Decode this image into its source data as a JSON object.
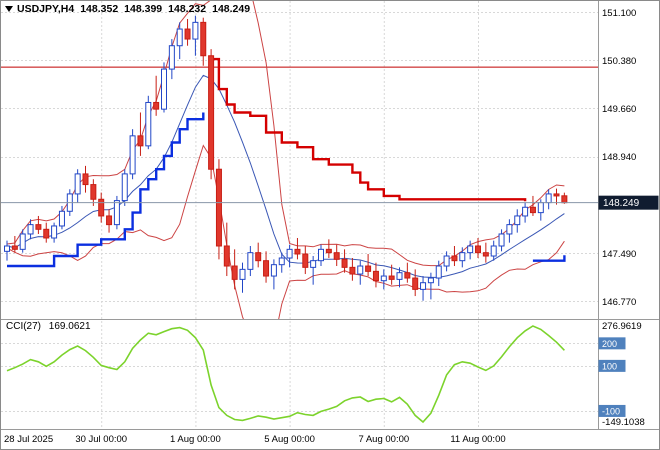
{
  "header": {
    "symbol_label": "USDJPY,H4",
    "open": "148.352",
    "high": "148.399",
    "low": "148.232",
    "close": "148.249"
  },
  "price_axis": {
    "labels": [
      {
        "text": "151.100",
        "price": 151.1
      },
      {
        "text": "150.380",
        "price": 150.38
      },
      {
        "text": "149.660",
        "price": 149.66
      },
      {
        "text": "148.940",
        "price": 148.94
      },
      {
        "text": "147.490",
        "price": 147.49
      },
      {
        "text": "146.770",
        "price": 146.77
      }
    ],
    "tag": {
      "text": "148.249",
      "price": 148.249
    }
  },
  "time_axis": {
    "labels": [
      {
        "text": "28 Jul 2025",
        "index": 0
      },
      {
        "text": "30 Jul 00:00",
        "index": 12
      },
      {
        "text": "1 Aug 00:00",
        "index": 24
      },
      {
        "text": "5 Aug 00:00",
        "index": 36
      },
      {
        "text": "7 Aug 00:00",
        "index": 48
      },
      {
        "text": "11 Aug 00:00",
        "index": 60
      }
    ]
  },
  "indicator": {
    "name": "CCI(27)",
    "value": "169.0621",
    "max_label": "276.9619",
    "min_label": "-149.1038",
    "levels": [
      {
        "text": "200",
        "value": 200
      },
      {
        "text": "100",
        "value": 100
      },
      {
        "text": "-100",
        "value": -100
      }
    ]
  },
  "colors": {
    "bull_fill": "#ffffff",
    "bull_stroke": "#2146c7",
    "bear_fill": "#e0372c",
    "bear_stroke": "#c81e14",
    "trend_up": "#0b2fe0",
    "trend_down": "#d40000",
    "band": "#cc4444",
    "mid": "#3a57b5",
    "grid": "#d8d8d8",
    "hline": "#c00000",
    "price_line": "#8896a8",
    "tag_bg": "#101c30",
    "tag_fg": "#ffffff",
    "level_box": "#4f81bd",
    "level_fg": "#ffffff",
    "cci": "#7cd32c",
    "axis_text": "#000000",
    "separator": "#9a9a9a"
  },
  "chart_data": {
    "type": "candlestick",
    "symbol": "USDJPY",
    "timeframe": "H4",
    "title": "USDJPY,H4",
    "ohlc_current": {
      "open": 148.352,
      "high": 148.399,
      "low": 148.232,
      "close": 148.249
    },
    "y_axis": {
      "min": 146.55,
      "max": 151.27,
      "tick_spacing": 0.72
    },
    "resistance_line": 150.28,
    "current_price": 148.249,
    "bollinger": {
      "window": 10,
      "mult": 1.6
    },
    "candles": [
      [
        147.52,
        147.68,
        147.38,
        147.6
      ],
      [
        147.6,
        147.75,
        147.5,
        147.55
      ],
      [
        147.55,
        147.85,
        147.5,
        147.78
      ],
      [
        147.78,
        148.0,
        147.7,
        147.92
      ],
      [
        147.92,
        148.05,
        147.78,
        147.85
      ],
      [
        147.85,
        147.95,
        147.65,
        147.72
      ],
      [
        147.72,
        147.95,
        147.65,
        147.9
      ],
      [
        147.9,
        148.2,
        147.85,
        148.12
      ],
      [
        148.12,
        148.45,
        148.05,
        148.38
      ],
      [
        148.38,
        148.75,
        148.25,
        148.68
      ],
      [
        148.68,
        148.8,
        148.4,
        148.52
      ],
      [
        148.52,
        148.6,
        148.2,
        148.3
      ],
      [
        148.3,
        148.4,
        147.95,
        148.05
      ],
      [
        148.05,
        148.15,
        147.8,
        147.92
      ],
      [
        147.92,
        148.35,
        147.85,
        148.28
      ],
      [
        148.28,
        148.75,
        148.2,
        148.68
      ],
      [
        148.68,
        149.35,
        148.6,
        149.25
      ],
      [
        149.25,
        149.6,
        148.95,
        149.1
      ],
      [
        149.1,
        149.85,
        149.05,
        149.75
      ],
      [
        149.75,
        150.15,
        149.55,
        149.65
      ],
      [
        149.65,
        150.35,
        149.6,
        150.25
      ],
      [
        150.25,
        150.7,
        150.1,
        150.6
      ],
      [
        150.6,
        150.95,
        150.4,
        150.85
      ],
      [
        150.85,
        151.0,
        150.6,
        150.7
      ],
      [
        150.7,
        151.05,
        150.45,
        150.95
      ],
      [
        150.95,
        151.02,
        150.3,
        150.45
      ],
      [
        150.45,
        150.55,
        148.6,
        148.75
      ],
      [
        148.75,
        148.9,
        147.4,
        147.6
      ],
      [
        147.6,
        147.95,
        147.15,
        147.3
      ],
      [
        147.3,
        147.55,
        146.95,
        147.1
      ],
      [
        147.1,
        147.35,
        146.9,
        147.25
      ],
      [
        147.25,
        147.6,
        147.15,
        147.5
      ],
      [
        147.5,
        147.65,
        147.28,
        147.38
      ],
      [
        147.38,
        147.52,
        147.05,
        147.15
      ],
      [
        147.15,
        147.4,
        146.95,
        147.32
      ],
      [
        147.32,
        147.5,
        147.2,
        147.42
      ],
      [
        147.42,
        147.62,
        147.28,
        147.55
      ],
      [
        147.55,
        147.72,
        147.4,
        147.48
      ],
      [
        147.48,
        147.6,
        147.18,
        147.28
      ],
      [
        147.28,
        147.45,
        147.02,
        147.38
      ],
      [
        147.38,
        147.62,
        147.3,
        147.55
      ],
      [
        147.55,
        147.7,
        147.42,
        147.5
      ],
      [
        147.5,
        147.62,
        147.3,
        147.4
      ],
      [
        147.4,
        147.55,
        147.2,
        147.28
      ],
      [
        147.28,
        147.42,
        147.08,
        147.18
      ],
      [
        147.18,
        147.38,
        147.02,
        147.3
      ],
      [
        147.3,
        147.48,
        147.15,
        147.22
      ],
      [
        147.22,
        147.35,
        146.98,
        147.08
      ],
      [
        147.08,
        147.25,
        146.95,
        147.15
      ],
      [
        147.15,
        147.32,
        147.02,
        147.1
      ],
      [
        147.1,
        147.28,
        146.98,
        147.2
      ],
      [
        147.2,
        147.35,
        147.05,
        147.12
      ],
      [
        147.12,
        147.25,
        146.85,
        146.95
      ],
      [
        146.95,
        147.15,
        146.78,
        147.05
      ],
      [
        147.05,
        147.2,
        146.8,
        147.12
      ],
      [
        147.12,
        147.38,
        147.0,
        147.3
      ],
      [
        147.3,
        147.52,
        147.22,
        147.45
      ],
      [
        147.45,
        147.6,
        147.3,
        147.38
      ],
      [
        147.38,
        147.58,
        147.28,
        147.5
      ],
      [
        147.5,
        147.68,
        147.4,
        147.6
      ],
      [
        147.6,
        147.72,
        147.42,
        147.5
      ],
      [
        147.5,
        147.65,
        147.35,
        147.45
      ],
      [
        147.45,
        147.68,
        147.38,
        147.6
      ],
      [
        147.6,
        147.85,
        147.52,
        147.78
      ],
      [
        147.78,
        148.0,
        147.65,
        147.92
      ],
      [
        147.92,
        148.15,
        147.8,
        148.05
      ],
      [
        148.05,
        148.25,
        147.95,
        148.18
      ],
      [
        148.18,
        148.35,
        148.05,
        148.1
      ],
      [
        148.1,
        148.3,
        147.98,
        148.25
      ],
      [
        148.25,
        148.45,
        148.15,
        148.38
      ],
      [
        148.38,
        148.46,
        148.22,
        148.35
      ],
      [
        148.352,
        148.399,
        148.232,
        148.249
      ]
    ],
    "trend_segments": [
      {
        "color_key": "trend_up",
        "points": [
          [
            0,
            147.3
          ],
          [
            5,
            147.3
          ],
          [
            6,
            147.45
          ],
          [
            8,
            147.45
          ],
          [
            9,
            147.62
          ],
          [
            11,
            147.62
          ],
          [
            12,
            147.7
          ],
          [
            14,
            147.7
          ],
          [
            15,
            147.85
          ],
          [
            16,
            148.1
          ],
          [
            17,
            148.45
          ],
          [
            18,
            148.6
          ],
          [
            19,
            148.75
          ],
          [
            20,
            148.95
          ],
          [
            21,
            149.15
          ],
          [
            22,
            149.35
          ],
          [
            23,
            149.5
          ],
          [
            25,
            149.6
          ]
        ]
      },
      {
        "color_key": "trend_down",
        "points": [
          [
            26,
            150.4
          ],
          [
            27,
            149.95
          ],
          [
            28,
            149.72
          ],
          [
            29,
            149.6
          ],
          [
            31,
            149.55
          ],
          [
            33,
            149.3
          ],
          [
            35,
            149.15
          ],
          [
            37,
            149.08
          ],
          [
            39,
            148.9
          ],
          [
            41,
            148.82
          ],
          [
            44,
            148.7
          ],
          [
            45,
            148.55
          ],
          [
            46,
            148.45
          ],
          [
            48,
            148.35
          ],
          [
            50,
            148.3
          ],
          [
            66,
            148.27
          ]
        ]
      },
      {
        "color_key": "trend_up",
        "points": [
          [
            67,
            147.38
          ],
          [
            71,
            147.46
          ]
        ]
      }
    ],
    "cci_values": [
      78,
      92,
      108,
      128,
      118,
      98,
      118,
      148,
      172,
      188,
      168,
      138,
      102,
      92,
      84,
      118,
      178,
      215,
      245,
      238,
      252,
      265,
      270,
      258,
      225,
      170,
      15,
      -85,
      -120,
      -138,
      -142,
      -133,
      -122,
      -128,
      -136,
      -130,
      -124,
      -108,
      -116,
      -120,
      -102,
      -92,
      -80,
      -55,
      -42,
      -38,
      -58,
      -48,
      -45,
      -60,
      -40,
      -70,
      -120,
      -149.1038,
      -110,
      -30,
      60,
      105,
      118,
      112,
      95,
      80,
      100,
      140,
      185,
      225,
      255,
      276.9619,
      262,
      235,
      205,
      169.0621
    ],
    "cci_levels": [
      200,
      100,
      -100
    ],
    "cci_current": 169.0621,
    "cci_max": 276.9619,
    "cci_min": -149.1038
  }
}
